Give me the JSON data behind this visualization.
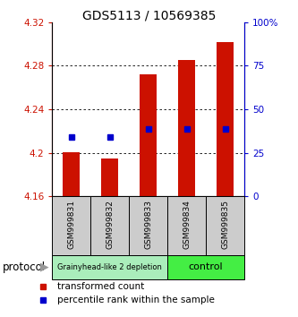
{
  "title": "GDS5113 / 10569385",
  "samples": [
    "GSM999831",
    "GSM999832",
    "GSM999833",
    "GSM999834",
    "GSM999835"
  ],
  "bar_bottoms": [
    4.16,
    4.16,
    4.16,
    4.16,
    4.16
  ],
  "bar_tops": [
    4.201,
    4.195,
    4.272,
    4.285,
    4.302
  ],
  "percentile_values": [
    4.215,
    4.215,
    4.222,
    4.222,
    4.222
  ],
  "ylim": [
    4.16,
    4.32
  ],
  "yticks": [
    4.16,
    4.2,
    4.24,
    4.28,
    4.32
  ],
  "ytick_labels": [
    "4.16",
    "4.2",
    "4.24",
    "4.28",
    "4.32"
  ],
  "y2lim": [
    0,
    100
  ],
  "y2ticks": [
    0,
    25,
    50,
    75,
    100
  ],
  "y2tick_labels": [
    "0",
    "25",
    "50",
    "75",
    "100%"
  ],
  "bar_color": "#cc1100",
  "dot_color": "#0000cc",
  "groups": [
    {
      "label": "Grainyhead-like 2 depletion",
      "indices": [
        0,
        1,
        2
      ],
      "color": "#aaeebb"
    },
    {
      "label": "control",
      "indices": [
        3,
        4
      ],
      "color": "#44ee44"
    }
  ],
  "protocol_label": "protocol",
  "legend_items": [
    {
      "label": "transformed count",
      "color": "#cc1100"
    },
    {
      "label": "percentile rank within the sample",
      "color": "#0000cc"
    }
  ],
  "title_fontsize": 10,
  "tick_fontsize": 7.5,
  "label_fontsize": 6.5
}
